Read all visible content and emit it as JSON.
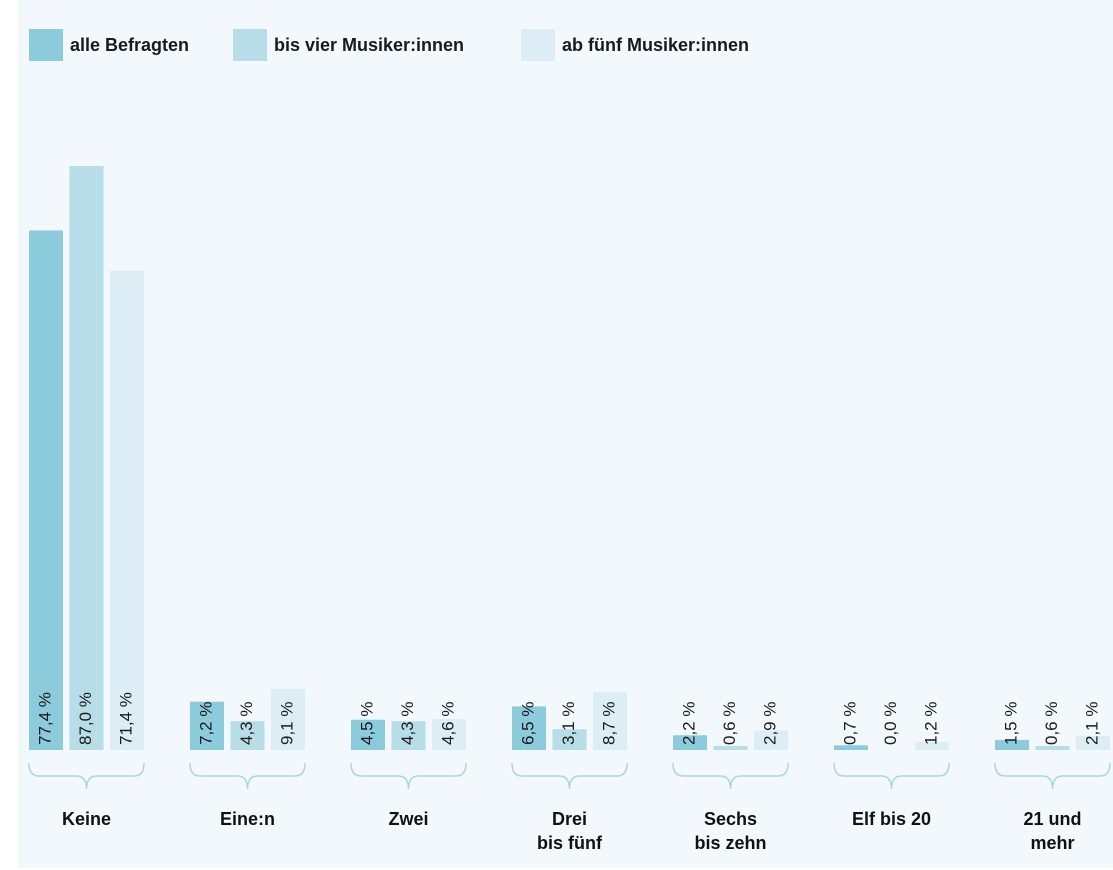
{
  "chart_data": {
    "type": "bar",
    "categories": [
      "Keine",
      "Eine:n",
      "Zwei",
      "Drei\nbis fünf",
      "Sechs\nbis zehn",
      "Elf bis 20",
      "21 und\nmehr"
    ],
    "series": [
      {
        "name": "alle Befragten",
        "color": "#8ccbdc",
        "values": [
          77.4,
          7.2,
          4.5,
          6.5,
          2.2,
          0.7,
          1.5
        ],
        "value_labels": [
          "77,4 %",
          "7,2 %",
          "4,5 %",
          "6,5 %",
          "2,2 %",
          "0,7 %",
          "1,5 %"
        ]
      },
      {
        "name": "bis vier Musiker:innen",
        "color": "#b7dde9",
        "values": [
          87.0,
          4.3,
          4.3,
          3.1,
          0.6,
          0.0,
          0.6
        ],
        "value_labels": [
          "87,0 %",
          "4,3 %",
          "4,3 %",
          "3,1 %",
          "0,6 %",
          "0,0 %",
          "0,6 %"
        ]
      },
      {
        "name": "ab fünf Musiker:innen",
        "color": "#dcedf5",
        "values": [
          71.4,
          9.1,
          4.6,
          8.7,
          2.9,
          1.2,
          2.1
        ],
        "value_labels": [
          "71,4 %",
          "9,1 %",
          "4,6 %",
          "8,7 %",
          "2,9 %",
          "1,2 %",
          "2,1 %"
        ]
      }
    ]
  }
}
